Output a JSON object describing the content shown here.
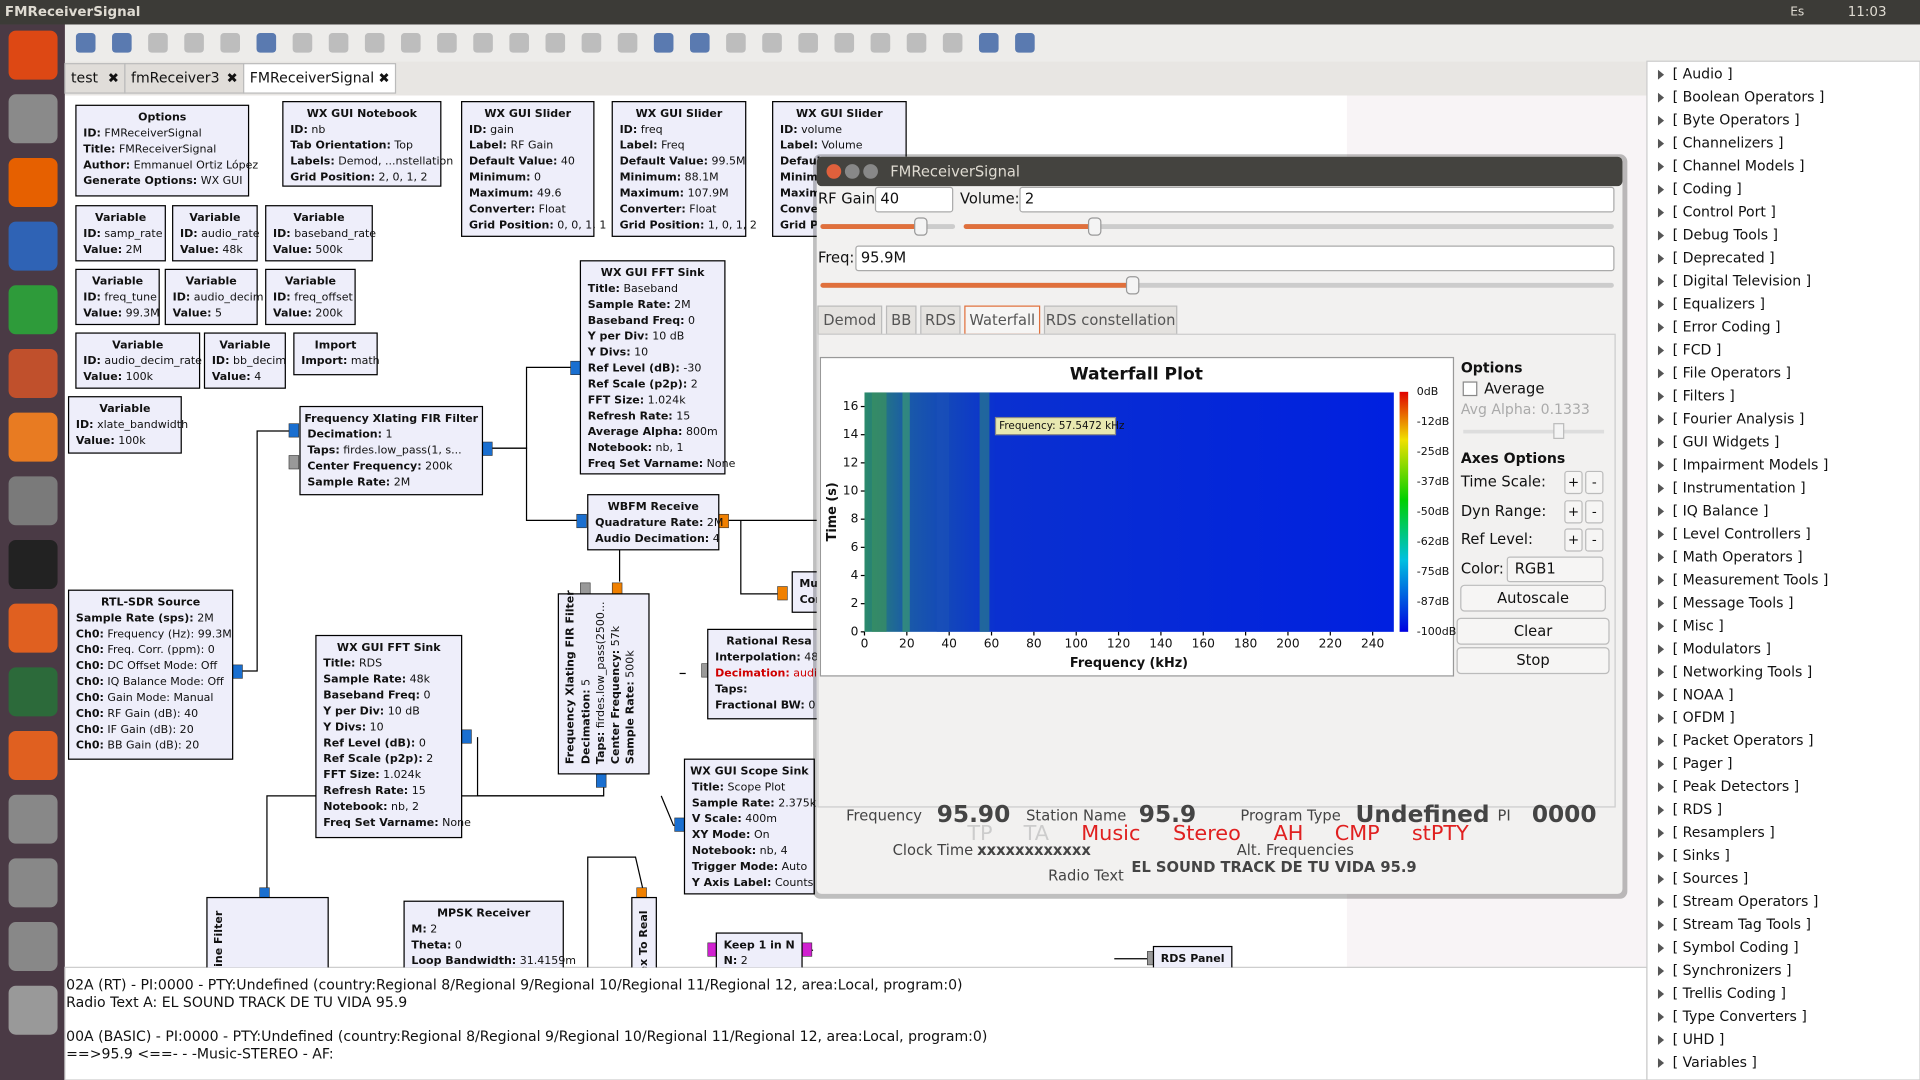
{
  "window_title": "FMReceiverSignal",
  "tray": {
    "keyboard": "Es",
    "time": "11:03"
  },
  "tabs": [
    "test",
    "fmReceiver3",
    "FMReceiverSignal"
  ],
  "blocks": [
    {
      "title": "Options",
      "lines": [
        "ID: FMReceiverSignal",
        "Title: FMReceiverSignal",
        "Author: Emmanuel Ortiz López",
        "Generate Options: WX GUI"
      ]
    },
    {
      "title": "WX GUI Notebook",
      "lines": [
        "ID: nb",
        "Tab Orientation: Top",
        "Labels: Demod, ...nstellation",
        "Grid Position: 2, 0, 1, 2"
      ]
    },
    {
      "title": "WX GUI Slider",
      "lines": [
        "ID: gain",
        "Label: RF Gain",
        "Default Value: 40",
        "Minimum: 0",
        "Maximum: 49.6",
        "Converter: Float",
        "Grid Position: 0, 0, 1, 1"
      ]
    },
    {
      "title": "WX GUI Slider",
      "lines": [
        "ID: freq",
        "Label: Freq",
        "Default Value: 99.5M",
        "Minimum: 88.1M",
        "Maximum: 107.9M",
        "Converter: Float",
        "Grid Position: 1, 0, 1, 2"
      ]
    },
    {
      "title": "WX GUI Slider",
      "lines": [
        "ID: volume",
        "Label: Volume",
        "Defaul",
        "Minimu",
        "Maxim",
        "Conver",
        "Grid Po"
      ]
    },
    {
      "title": "Variable",
      "lines": [
        "ID: samp_rate",
        "Value: 2M"
      ]
    },
    {
      "title": "Variable",
      "lines": [
        "ID: audio_rate",
        "Value: 48k"
      ]
    },
    {
      "title": "Variable",
      "lines": [
        "ID: baseband_rate",
        "Value: 500k"
      ]
    },
    {
      "title": "Variable",
      "lines": [
        "ID: freq_tune",
        "Value: 99.3M"
      ]
    },
    {
      "title": "Variable",
      "lines": [
        "ID: audio_decim",
        "Value: 5"
      ]
    },
    {
      "title": "Variable",
      "lines": [
        "ID: freq_offset",
        "Value: 200k"
      ]
    },
    {
      "title": "Variable",
      "lines": [
        "ID: audio_decim_rate",
        "Value: 100k"
      ]
    },
    {
      "title": "Variable",
      "lines": [
        "ID: bb_decim",
        "Value: 4"
      ]
    },
    {
      "title": "Import",
      "lines": [
        "Import: math"
      ]
    },
    {
      "title": "Variable",
      "lines": [
        "ID: xlate_bandwidth",
        "Value: 100k"
      ]
    },
    {
      "title": "Frequency Xlating FIR Filter",
      "lines": [
        "Decimation: 1",
        "Taps: firdes.low_pass(1, s...",
        "Center Frequency: 200k",
        "Sample Rate: 2M"
      ]
    },
    {
      "title": "WX GUI FFT Sink",
      "lines": [
        "Title: Baseband",
        "Sample Rate: 2M",
        "Baseband Freq: 0",
        "Y per Div: 10 dB",
        "Y Divs: 10",
        "Ref Level (dB): -30",
        "Ref Scale (p2p): 2",
        "FFT Size: 1.024k",
        "Refresh Rate: 15",
        "Average Alpha: 800m",
        "Notebook: nb, 1",
        "Freq Set Varname: None"
      ]
    },
    {
      "title": "WBFM Receive",
      "lines": [
        "Quadrature Rate: 2M",
        "Audio Decimation: 4"
      ]
    },
    {
      "title": "RTL-SDR Source",
      "lines": [
        "Sample Rate (sps): 2M",
        "Ch0: Frequency (Hz): 99.3M",
        "Ch0: Freq. Corr. (ppm): 0",
        "Ch0: DC Offset Mode: Off",
        "Ch0: IQ Balance Mode: Off",
        "Ch0: Gain Mode: Manual",
        "Ch0: RF Gain (dB): 40",
        "Ch0: IF Gain (dB): 20",
        "Ch0: BB Gain (dB): 20"
      ]
    },
    {
      "title": "WX GUI FFT Sink",
      "lines": [
        "Title: RDS",
        "Sample Rate: 48k",
        "Baseband Freq: 0",
        "Y per Div: 10 dB",
        "Y Divs: 10",
        "Ref Level (dB): 0",
        "Ref Scale (p2p): 2",
        "FFT Size: 1.024k",
        "Refresh Rate: 15",
        "Notebook: nb, 2",
        "Freq Set Varname: None"
      ]
    },
    {
      "title": "Frequency Xlating FIR Filter",
      "lines": [
        "Decimation: 5",
        "Taps: firdes.low_pass(2500...",
        "Center Frequency: 57k",
        "Sample Rate: 500k"
      ]
    },
    {
      "title": "Rational Resa",
      "lines": [
        "Interpolation: 48k",
        "Decimation: audio",
        "Taps:",
        "Fractional BW: 0"
      ]
    },
    {
      "title": "Mul",
      "lines": [
        "Con"
      ]
    },
    {
      "title": "WX GUI Scope Sink",
      "lines": [
        "Title: Scope Plot",
        "Sample Rate: 2.375k",
        "V Scale: 400m",
        "XY Mode: On",
        "Notebook: nb, 4",
        "Trigger Mode: Auto",
        "Y Axis Label: Counts"
      ]
    },
    {
      "title": "MPSK Receiver",
      "lines": [
        "M: 2",
        "Theta: 0",
        "Loop Bandwidth: 31.4159m"
      ]
    },
    {
      "title": "Keep 1 in N",
      "lines": [
        "N: 2"
      ]
    },
    {
      "title": "RDS Panel",
      "lines": []
    },
    {
      "title": "sine Filter",
      "lines": []
    },
    {
      "title": "ex To Real",
      "lines": []
    }
  ],
  "console": [
    "02A (RT) - PI:0000 - PTY:Undefined (country:Regional 8/Regional 9/Regional 10/Regional 11/Regional 12, area:Local, program:0)",
    "Radio Text A: EL SOUND TRACK DE TU VIDA 95.9",
    "00A (BASIC) - PI:0000 - PTY:Undefined (country:Regional 8/Regional 9/Regional 10/Regional 11/Regional 12, area:Local, program:0)",
    "==>95.9    <==- - -Music-STEREO - AF:"
  ],
  "block_tree": [
    "[ Audio ]",
    "[ Boolean Operators ]",
    "[ Byte Operators ]",
    "[ Channelizers ]",
    "[ Channel Models ]",
    "[ Coding ]",
    "[ Control Port ]",
    "[ Debug Tools ]",
    "[ Deprecated ]",
    "[ Digital Television ]",
    "[ Equalizers ]",
    "[ Error Coding ]",
    "[ FCD ]",
    "[ File Operators ]",
    "[ Filters ]",
    "[ Fourier Analysis ]",
    "[ GUI Widgets ]",
    "[ Impairment Models ]",
    "[ Instrumentation ]",
    "[ IQ Balance ]",
    "[ Level Controllers ]",
    "[ Math Operators ]",
    "[ Measurement Tools ]",
    "[ Message Tools ]",
    "[ Misc ]",
    "[ Modulators ]",
    "[ Networking Tools ]",
    "[ NOAA ]",
    "[ OFDM ]",
    "[ Packet Operators ]",
    "[ Pager ]",
    "[ Peak Detectors ]",
    "[ RDS ]",
    "[ Resamplers ]",
    "[ Sinks ]",
    "[ Sources ]",
    "[ Stream Operators ]",
    "[ Stream Tag Tools ]",
    "[ Symbol Coding ]",
    "[ Synchronizers ]",
    "[ Trellis Coding ]",
    "[ Type Converters ]",
    "[ UHD ]",
    "[ Variables ]"
  ],
  "app": {
    "title": "FMReceiverSignal",
    "controls": {
      "rf_gain_label": "RF Gain:",
      "rf_gain": "40",
      "volume_label": "Volume:",
      "volume": "2",
      "freq_label": "Freq:",
      "freq": "95.9M"
    },
    "tabs": [
      "Demod",
      "BB",
      "RDS",
      "Waterfall",
      "RDS constellation"
    ],
    "waterfall": {
      "title": "Waterfall Plot",
      "xlabel": "Frequency (kHz)",
      "ylabel": "Time (s)",
      "xlim": [
        0,
        250
      ],
      "ylim": [
        0,
        17
      ],
      "xticks": [
        0,
        20,
        40,
        60,
        80,
        100,
        120,
        140,
        160,
        180,
        200,
        220,
        240
      ],
      "yticks": [
        0,
        2,
        4,
        6,
        8,
        10,
        12,
        14,
        16
      ],
      "colorbar": [
        "0dB",
        "-12dB",
        "-25dB",
        "-37dB",
        "-50dB",
        "-62dB",
        "-75dB",
        "-87dB",
        "-100dB"
      ],
      "tooltip": "Frequency: 57.5472 kHz"
    },
    "options": {
      "title": "Options",
      "average": "Average",
      "avg_alpha": "Avg Alpha: 0.1333",
      "axes": "Axes Options",
      "time_scale": "Time Scale:",
      "dyn_range": "Dyn Range:",
      "ref_level": "Ref Level:",
      "color": "Color:",
      "color_value": "RGB1",
      "autoscale": "Autoscale",
      "clear": "Clear",
      "stop": "Stop",
      "plus": "+",
      "minus": "-"
    },
    "rds": {
      "frequency_label": "Frequency",
      "frequency": "95.90",
      "station_label": "Station Name",
      "station": "95.9",
      "program_type_label": "Program Type",
      "program_type": "Undefined",
      "pi_label": "PI",
      "pi": "0000",
      "tp": "TP",
      "ta": "TA",
      "music": "Music",
      "stereo": "Stereo",
      "ah": "AH",
      "cmp": "CMP",
      "stpty": "stPTY",
      "clock_label": "Clock Time",
      "clock": "xxxxxxxxxxxx",
      "alt_label": "Alt. Frequencies",
      "radio_text_label": "Radio Text",
      "radio_text": "EL SOUND TRACK DE TU VIDA 95.9"
    }
  }
}
